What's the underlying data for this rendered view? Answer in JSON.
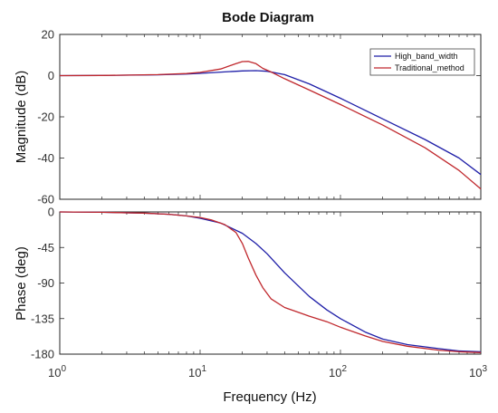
{
  "chart_data": {
    "type": "line",
    "title": "Bode Diagram",
    "xlabel": "Frequency  (Hz)",
    "x_scale": "log",
    "xlim": [
      1,
      1000
    ],
    "x_ticks": [
      1,
      10,
      100,
      1000
    ],
    "x_tick_labels": [
      {
        "base": "10",
        "exp": "0"
      },
      {
        "base": "10",
        "exp": "1"
      },
      {
        "base": "10",
        "exp": "2"
      },
      {
        "base": "10",
        "exp": "3"
      }
    ],
    "grid": false,
    "legend": {
      "placement": "top-right",
      "entries": [
        "High_band_width",
        "Traditional_method"
      ]
    },
    "colors": {
      "High_band_width": "#1f1fa8",
      "Traditional_method": "#c0282d"
    },
    "panels": [
      {
        "name": "magnitude",
        "ylabel": "Magnitude (dB)",
        "ylim": [
          -60,
          20
        ],
        "y_ticks": [
          20,
          0,
          -20,
          -40,
          -60
        ],
        "series": [
          {
            "name": "High_band_width",
            "x": [
              1,
              2,
              5,
              8,
              10,
              15,
              20,
              25,
              30,
              40,
              60,
              100,
              200,
              400,
              700,
              1000
            ],
            "y": [
              0,
              0.1,
              0.4,
              0.8,
              1.1,
              1.8,
              2.3,
              2.4,
              2.1,
              0.5,
              -4,
              -11,
              -21,
              -31,
              -40,
              -48
            ]
          },
          {
            "name": "Traditional_method",
            "x": [
              1,
              2,
              5,
              8,
              10,
              14,
              18,
              20,
              22,
              25,
              28,
              32,
              40,
              60,
              100,
              200,
              400,
              700,
              1000
            ],
            "y": [
              0,
              0.1,
              0.5,
              1,
              1.6,
              3.2,
              5.8,
              6.8,
              6.9,
              5.8,
              3.5,
              1.8,
              -1.5,
              -7,
              -14,
              -24,
              -35,
              -46,
              -55
            ]
          }
        ]
      },
      {
        "name": "phase",
        "ylabel": "Phase (deg)",
        "ylim": [
          -180,
          0
        ],
        "y_ticks": [
          0,
          -45,
          -90,
          -135,
          -180
        ],
        "series": [
          {
            "name": "High_band_width",
            "x": [
              1,
              2,
              4,
              6,
              8,
              10,
              14,
              20,
              25,
              30,
              40,
              60,
              80,
              100,
              150,
              200,
              300,
              500,
              700,
              1000
            ],
            "y": [
              0,
              -0.5,
              -1.5,
              -3,
              -5,
              -8,
              -14,
              -27,
              -40,
              -53,
              -77,
              -107,
              -124,
              -135,
              -152,
              -161,
              -168,
              -173,
              -176,
              -177
            ]
          },
          {
            "name": "Traditional_method",
            "x": [
              1,
              2,
              4,
              6,
              8,
              10,
              12,
              15,
              18,
              20,
              22,
              25,
              28,
              32,
              40,
              50,
              60,
              80,
              100,
              150,
              200,
              300,
              500,
              700,
              1000
            ],
            "y": [
              0,
              -0.5,
              -1.5,
              -3,
              -5,
              -7,
              -10,
              -16,
              -26,
              -40,
              -58,
              -80,
              -96,
              -110,
              -121,
              -127,
              -132,
              -139,
              -146,
              -157,
              -164,
              -170,
              -175,
              -177,
              -178
            ]
          }
        ]
      }
    ]
  }
}
